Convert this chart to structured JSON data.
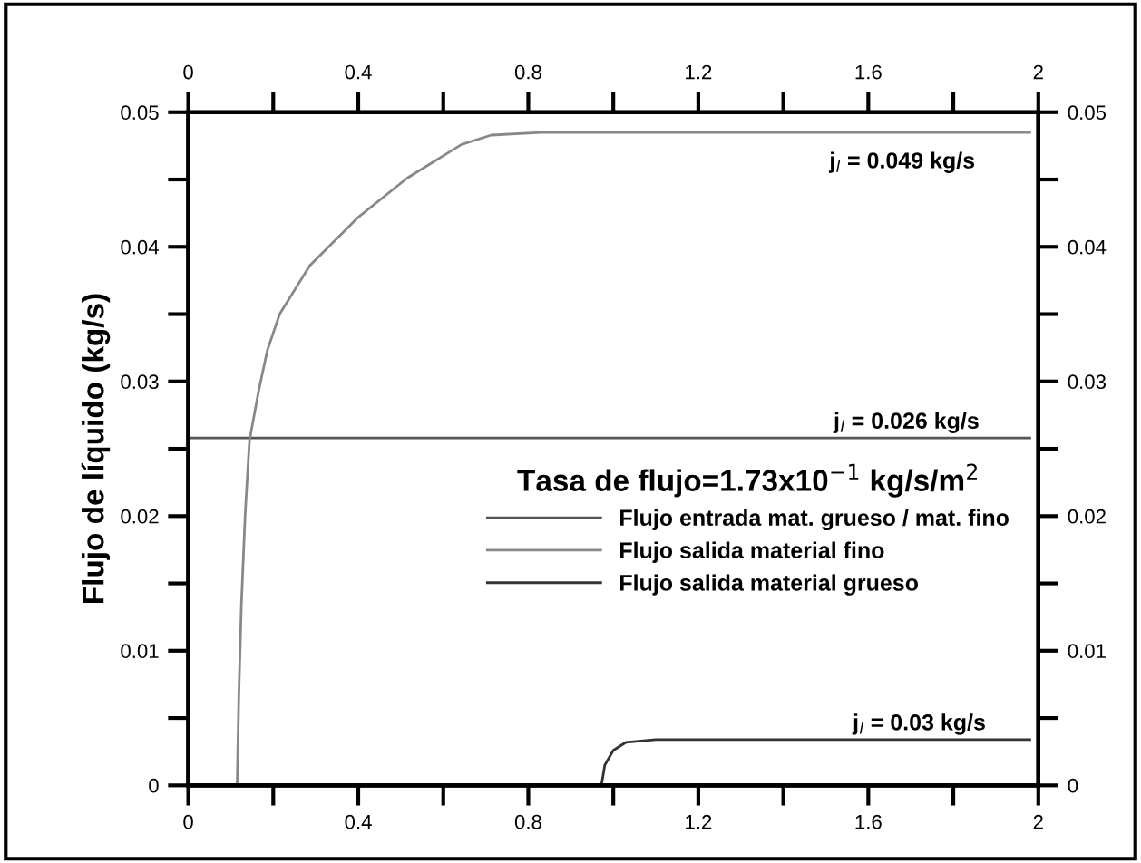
{
  "chart_data": {
    "type": "line",
    "ylabel": "Flujo de líquido (kg/s)",
    "legend_title": "Tasa de flujo=1.73x10$^{−1}$ kg/s/m$^{2}$",
    "legend": "right",
    "series": [
      {
        "name": "Flujo entrada mat. grueso / mat. fino",
        "color": "#555555",
        "x": [
          0,
          1.98
        ],
        "values": [
          0.0258,
          0.0258
        ]
      },
      {
        "name": "Flujo salida material fino",
        "color": "#888888",
        "x": [
          0.115,
          0.119,
          0.125,
          0.134,
          0.144,
          0.165,
          0.186,
          0.215,
          0.286,
          0.4,
          0.515,
          0.643,
          0.713,
          0.83,
          1.98
        ],
        "values": [
          0,
          0.0067,
          0.0134,
          0.0202,
          0.0256,
          0.0292,
          0.0323,
          0.035,
          0.0386,
          0.0422,
          0.0451,
          0.0476,
          0.0483,
          0.0485,
          0.0485
        ]
      },
      {
        "name": "Flujo salida material grueso",
        "color": "#333333",
        "x": [
          0,
          0.972,
          0.98,
          1.0,
          1.03,
          1.1,
          1.98
        ],
        "values": [
          0,
          0,
          0.0015,
          0.0026,
          0.0032,
          0.0034,
          0.0034
        ]
      }
    ],
    "annotations": [
      {
        "text": "j$_{l}$ = 0.049 kg/s",
        "x": 1.68,
        "y": 0.0485
      },
      {
        "text": "j$_{l}$ = 0.026 kg/s",
        "x": 1.69,
        "y": 0.0258
      },
      {
        "text": "j$_{l}$ = 0.03 kg/s",
        "x": 1.72,
        "y": 0.0034
      }
    ],
    "xlim": [
      0,
      2
    ],
    "xticks": [
      0,
      {
        "value": 0.2,
        "label": null
      },
      0.4,
      {
        "value": 0.6,
        "label": null
      },
      0.8,
      {
        "value": 1.0,
        "label": null
      },
      1.2,
      {
        "value": 1.4,
        "label": null
      },
      1.6,
      {
        "value": 1.8,
        "label": null
      },
      2
    ],
    "x2lim": [
      0,
      2
    ],
    "x2ticks": [
      0,
      {
        "value": 0.2,
        "label": null
      },
      0.4,
      {
        "value": 0.6,
        "label": null
      },
      0.8,
      {
        "value": 1.0,
        "label": null
      },
      1.2,
      {
        "value": 1.4,
        "label": null
      },
      1.6,
      {
        "value": 1.8,
        "label": null
      },
      2
    ],
    "ylim": [
      0,
      0.05
    ],
    "yticks": [
      0,
      {
        "value": 0.005,
        "label": null
      },
      0.01,
      {
        "value": 0.015,
        "label": null
      },
      0.02,
      {
        "value": 0.025,
        "label": null
      },
      0.03,
      {
        "value": 0.035,
        "label": null
      },
      0.04,
      {
        "value": 0.045,
        "label": null
      },
      0.05
    ],
    "y2lim": [
      0,
      0.05
    ],
    "y2ticks": [
      0,
      {
        "value": 0.005,
        "label": null
      },
      0.01,
      {
        "value": 0.015,
        "label": null
      },
      0.02,
      {
        "value": 0.025,
        "label": null
      },
      0.03,
      {
        "value": 0.035,
        "label": null
      },
      0.04,
      {
        "value": 0.045,
        "label": null
      },
      0.05
    ],
    "grid": false,
    "marker": "none",
    "line_style": "solid"
  }
}
